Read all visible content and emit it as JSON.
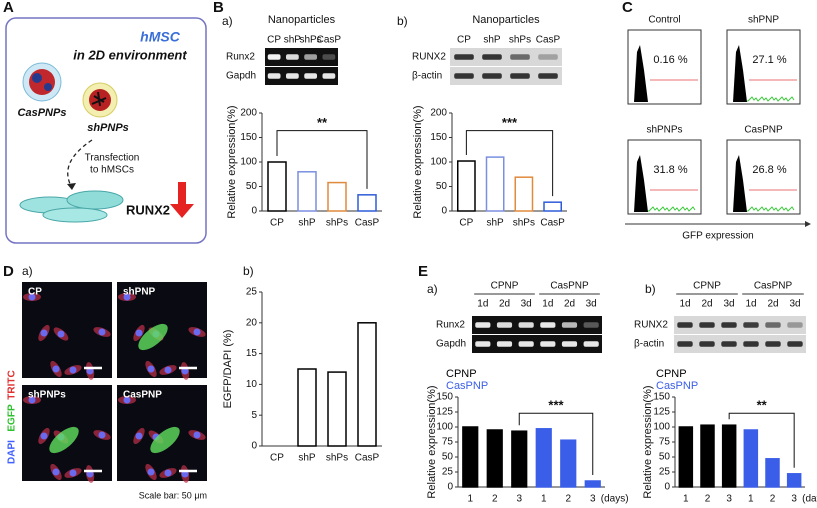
{
  "panel_labels": {
    "A": "A",
    "B": "B",
    "C": "C",
    "D": "D",
    "E": "E",
    "a": "a)",
    "b": "b)"
  },
  "schematic": {
    "title": "hMSC",
    "subtitle": "in 2D environment",
    "particle_1": "CasPNPs",
    "particle_2": "shPNPs",
    "step": [
      "Transfection",
      "to hMSCs"
    ],
    "gene": "RUNX2"
  },
  "gels": [
    {
      "header": "Nanoparticles",
      "lanes": [
        "CP",
        "shP",
        "shPs",
        "CasP"
      ],
      "rows": [
        "Runx2",
        "Gapdh"
      ]
    },
    {
      "header": "Nanoparticles",
      "lanes": [
        "CP",
        "shP",
        "shPs",
        "CasP"
      ],
      "rows": [
        "RUNX2",
        "β-actin"
      ]
    },
    {
      "groups": [
        "CPNP",
        "CasPNP"
      ],
      "lanes": [
        "1d",
        "2d",
        "3d",
        "1d",
        "2d",
        "3d"
      ],
      "rows": [
        "Runx2",
        "Gapdh"
      ]
    },
    {
      "groups": [
        "CPNP",
        "CasPNP"
      ],
      "lanes": [
        "1d",
        "2d",
        "3d",
        "1d",
        "2d",
        "3d"
      ],
      "rows": [
        "RUNX2",
        "β-actin"
      ]
    }
  ],
  "flow": {
    "panels": [
      {
        "title": "Control",
        "percent": "0.16 %"
      },
      {
        "title": "shPNP",
        "percent": "27.1 %"
      },
      {
        "title": "shPNPs",
        "percent": "31.8 %"
      },
      {
        "title": "CasPNP",
        "percent": "26.8 %"
      }
    ],
    "axis_label": "GFP expression"
  },
  "microscopy": {
    "panels": [
      "CP",
      "shPNP",
      "shPNPs",
      "CasPNP"
    ],
    "stains": [
      "DAPI",
      "EGFP",
      "TRITC"
    ],
    "scale": "Scale bar: 50 μm"
  },
  "chart_data": [
    {
      "type": "bar",
      "y_label": "Relative expression(%)",
      "categories": [
        "CP",
        "shP",
        "shPs",
        "CasP"
      ],
      "values": [
        100,
        80,
        58,
        33
      ],
      "colors": [
        "#000000",
        "#7b8fe0",
        "#e08a3c",
        "#2e5bd8"
      ],
      "fill": "#ffffff",
      "ylim": [
        0,
        200
      ],
      "yticks": [
        0,
        50,
        100,
        150,
        200
      ],
      "annotation": "**"
    },
    {
      "type": "bar",
      "y_label": "Relative expression(%)",
      "categories": [
        "CP",
        "shP",
        "shPs",
        "CasP"
      ],
      "values": [
        102,
        110,
        69,
        18
      ],
      "colors": [
        "#000000",
        "#7b8fe0",
        "#e08a3c",
        "#2e5bd8"
      ],
      "fill": "#ffffff",
      "ylim": [
        0,
        200
      ],
      "yticks": [
        0,
        50,
        100,
        150,
        200
      ],
      "annotation": "***"
    },
    {
      "type": "bar",
      "y_label": "EGFP/DAPI (%)",
      "categories": [
        "CP",
        "shP",
        "shPs",
        "CasP"
      ],
      "values": [
        0,
        12.5,
        12,
        20
      ],
      "colors": [
        "#000000",
        "#000000",
        "#000000",
        "#000000"
      ],
      "fill": "#ffffff",
      "ylim": [
        0,
        25
      ],
      "yticks": [
        0,
        5,
        10,
        15,
        20,
        25
      ]
    },
    {
      "type": "bar",
      "y_label": "Relative expression(%)",
      "categories": [
        "1",
        "2",
        "3",
        "1",
        "2",
        "3"
      ],
      "x_unit": "(days)",
      "series": [
        {
          "name": "CPNP",
          "color": "#000000",
          "values": [
            100,
            95,
            93,
            null,
            null,
            null
          ]
        },
        {
          "name": "CasPNP",
          "color": "#3b5ee8",
          "values": [
            null,
            null,
            null,
            97,
            78,
            10
          ]
        }
      ],
      "ylim": [
        0,
        150
      ],
      "yticks": [
        0,
        25,
        50,
        75,
        100,
        125,
        150
      ],
      "annotation": "***"
    },
    {
      "type": "bar",
      "y_label": "Relative expression(%)",
      "categories": [
        "1",
        "2",
        "3",
        "1",
        "2",
        "3"
      ],
      "x_unit": "(days)",
      "series": [
        {
          "name": "CPNP",
          "color": "#000000",
          "values": [
            100,
            103,
            103,
            null,
            null,
            null
          ]
        },
        {
          "name": "CasPNP",
          "color": "#3b5ee8",
          "values": [
            null,
            null,
            null,
            95,
            47,
            22
          ]
        }
      ],
      "ylim": [
        0,
        150
      ],
      "yticks": [
        0,
        25,
        50,
        75,
        100,
        125,
        150
      ],
      "annotation": "**"
    }
  ]
}
